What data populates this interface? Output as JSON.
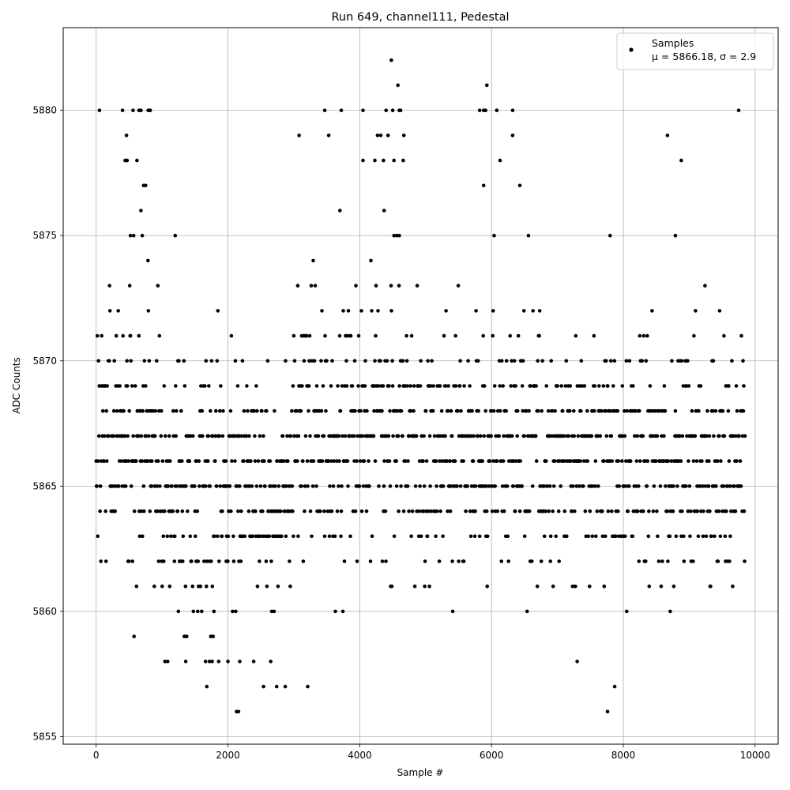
{
  "chart_data": {
    "type": "scatter",
    "title": "Run 649, channel111, Pedestal",
    "xlabel": "Sample #",
    "ylabel": "ADC Counts",
    "xlim": [
      -500,
      10350
    ],
    "ylim": [
      5854.7,
      5883.3
    ],
    "xticks": [
      0,
      2000,
      4000,
      6000,
      8000,
      10000
    ],
    "yticks": [
      5855,
      5860,
      5865,
      5870,
      5875,
      5880
    ],
    "grid": true,
    "legend": {
      "placement": "top-right",
      "series_label": "Samples",
      "stats_label": "μ = 5866.18, σ = 2.9"
    },
    "marker_color": "#000000",
    "series": [
      {
        "name": "Samples",
        "n_samples": 9850,
        "mean": 5866.18,
        "sigma": 2.9,
        "x_range": [
          0,
          9850
        ],
        "y_range": [
          5856,
          5882
        ],
        "outliers": [
          {
            "x": 50,
            "y": 5880
          },
          {
            "x": 400,
            "y": 5880
          },
          {
            "x": 560,
            "y": 5880
          },
          {
            "x": 650,
            "y": 5880
          },
          {
            "x": 680,
            "y": 5880
          },
          {
            "x": 790,
            "y": 5880
          },
          {
            "x": 820,
            "y": 5880
          },
          {
            "x": 3470,
            "y": 5880
          },
          {
            "x": 3720,
            "y": 5880
          },
          {
            "x": 4050,
            "y": 5880
          },
          {
            "x": 4400,
            "y": 5880
          },
          {
            "x": 4500,
            "y": 5880
          },
          {
            "x": 4600,
            "y": 5880
          },
          {
            "x": 4620,
            "y": 5880
          },
          {
            "x": 5820,
            "y": 5880
          },
          {
            "x": 5880,
            "y": 5880
          },
          {
            "x": 5910,
            "y": 5880
          },
          {
            "x": 6080,
            "y": 5880
          },
          {
            "x": 6320,
            "y": 5880
          },
          {
            "x": 9750,
            "y": 5880
          },
          {
            "x": 4480,
            "y": 5882
          },
          {
            "x": 4580,
            "y": 5881
          },
          {
            "x": 5930,
            "y": 5881
          },
          {
            "x": 460,
            "y": 5879
          },
          {
            "x": 3080,
            "y": 5879
          },
          {
            "x": 3530,
            "y": 5879
          },
          {
            "x": 4270,
            "y": 5879
          },
          {
            "x": 4320,
            "y": 5879
          },
          {
            "x": 4430,
            "y": 5879
          },
          {
            "x": 4670,
            "y": 5879
          },
          {
            "x": 6320,
            "y": 5879
          },
          {
            "x": 8670,
            "y": 5879
          },
          {
            "x": 440,
            "y": 5878
          },
          {
            "x": 470,
            "y": 5878
          },
          {
            "x": 620,
            "y": 5878
          },
          {
            "x": 4050,
            "y": 5878
          },
          {
            "x": 4230,
            "y": 5878
          },
          {
            "x": 4360,
            "y": 5878
          },
          {
            "x": 4520,
            "y": 5878
          },
          {
            "x": 4660,
            "y": 5878
          },
          {
            "x": 6130,
            "y": 5878
          },
          {
            "x": 8880,
            "y": 5878
          },
          {
            "x": 720,
            "y": 5877
          },
          {
            "x": 750,
            "y": 5877
          },
          {
            "x": 5880,
            "y": 5877
          },
          {
            "x": 6430,
            "y": 5877
          },
          {
            "x": 680,
            "y": 5876
          },
          {
            "x": 3700,
            "y": 5876
          },
          {
            "x": 4370,
            "y": 5876
          },
          {
            "x": 520,
            "y": 5875
          },
          {
            "x": 570,
            "y": 5875
          },
          {
            "x": 700,
            "y": 5875
          },
          {
            "x": 1200,
            "y": 5875
          },
          {
            "x": 4520,
            "y": 5875
          },
          {
            "x": 4560,
            "y": 5875
          },
          {
            "x": 4600,
            "y": 5875
          },
          {
            "x": 6040,
            "y": 5875
          },
          {
            "x": 6560,
            "y": 5875
          },
          {
            "x": 7800,
            "y": 5875
          },
          {
            "x": 8790,
            "y": 5875
          },
          {
            "x": 1680,
            "y": 5857
          },
          {
            "x": 2540,
            "y": 5857
          },
          {
            "x": 2740,
            "y": 5857
          },
          {
            "x": 2870,
            "y": 5857
          },
          {
            "x": 3210,
            "y": 5857
          },
          {
            "x": 7870,
            "y": 5857
          },
          {
            "x": 2130,
            "y": 5856
          },
          {
            "x": 2160,
            "y": 5856
          },
          {
            "x": 7760,
            "y": 5856
          },
          {
            "x": 1360,
            "y": 5858
          },
          {
            "x": 1660,
            "y": 5858
          },
          {
            "x": 1720,
            "y": 5858
          },
          {
            "x": 1760,
            "y": 5858
          },
          {
            "x": 1860,
            "y": 5858
          },
          {
            "x": 2000,
            "y": 5858
          },
          {
            "x": 2180,
            "y": 5858
          },
          {
            "x": 2390,
            "y": 5858
          },
          {
            "x": 2650,
            "y": 5858
          },
          {
            "x": 7300,
            "y": 5858
          }
        ]
      }
    ]
  }
}
